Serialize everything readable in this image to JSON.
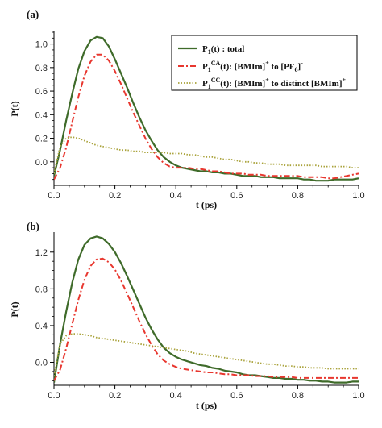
{
  "chart_data": [
    {
      "type": "line",
      "panel_label": "(a)",
      "xlabel": "t (ps)",
      "ylabel": "P(t)",
      "xlim": [
        0,
        1.0
      ],
      "ylim": [
        -0.2,
        1.1
      ],
      "xticks": [
        0.0,
        0.2,
        0.4,
        0.6,
        0.8,
        1.0
      ],
      "xtick_labels": [
        "0.0",
        "0.2",
        "0.4",
        "0.6",
        "0.8",
        "1.0"
      ],
      "yticks": [
        0.0,
        0.2,
        0.4,
        0.6,
        0.8,
        1.0
      ],
      "ytick_labels": [
        "0.0",
        "0.2",
        "0.4",
        "0.6",
        "0.8",
        "1.0"
      ],
      "grid": false,
      "legend": {
        "placement": "top-right",
        "entries": [
          {
            "series": 0,
            "parts": [
              {
                "t": "P",
                "s": "normal"
              },
              {
                "t": "1",
                "s": "sub"
              },
              {
                "t": "(t)    : total",
                "s": "normal"
              }
            ]
          },
          {
            "series": 1,
            "parts": [
              {
                "t": "P",
                "s": "normal"
              },
              {
                "t": "1",
                "s": "sub"
              },
              {
                "t": "CA",
                "s": "sup"
              },
              {
                "t": "(t): [BMIm]",
                "s": "normal"
              },
              {
                "t": "+",
                "s": "sup"
              },
              {
                "t": " to [PF",
                "s": "normal"
              },
              {
                "t": "6",
                "s": "sub"
              },
              {
                "t": "]",
                "s": "normal"
              },
              {
                "t": "-",
                "s": "sup"
              }
            ]
          },
          {
            "series": 2,
            "parts": [
              {
                "t": "P",
                "s": "normal"
              },
              {
                "t": "1",
                "s": "sub"
              },
              {
                "t": "CC",
                "s": "sup"
              },
              {
                "t": "(t): [BMIm]",
                "s": "normal"
              },
              {
                "t": "+",
                "s": "sup"
              },
              {
                "t": " to distinct [BMIm]",
                "s": "normal"
              },
              {
                "t": "+",
                "s": "sup"
              }
            ]
          }
        ]
      },
      "series": [
        {
          "style": "solid",
          "color": "#3f6b2a",
          "x": [
            0.0,
            0.02,
            0.04,
            0.06,
            0.08,
            0.1,
            0.12,
            0.14,
            0.16,
            0.18,
            0.2,
            0.22,
            0.24,
            0.26,
            0.28,
            0.3,
            0.32,
            0.34,
            0.36,
            0.38,
            0.4,
            0.42,
            0.44,
            0.46,
            0.48,
            0.5,
            0.52,
            0.54,
            0.56,
            0.58,
            0.6,
            0.62,
            0.64,
            0.66,
            0.68,
            0.7,
            0.72,
            0.74,
            0.76,
            0.78,
            0.8,
            0.82,
            0.84,
            0.86,
            0.88,
            0.9,
            0.92,
            0.94,
            0.96,
            0.98,
            1.0
          ],
          "y": [
            -0.12,
            0.1,
            0.35,
            0.58,
            0.79,
            0.94,
            1.03,
            1.06,
            1.05,
            0.98,
            0.87,
            0.75,
            0.63,
            0.5,
            0.38,
            0.27,
            0.18,
            0.1,
            0.04,
            0.0,
            -0.03,
            -0.05,
            -0.06,
            -0.07,
            -0.08,
            -0.08,
            -0.09,
            -0.09,
            -0.1,
            -0.1,
            -0.11,
            -0.12,
            -0.12,
            -0.12,
            -0.13,
            -0.13,
            -0.13,
            -0.14,
            -0.14,
            -0.14,
            -0.14,
            -0.15,
            -0.15,
            -0.16,
            -0.16,
            -0.16,
            -0.15,
            -0.15,
            -0.15,
            -0.15,
            -0.14
          ]
        },
        {
          "style": "dash-dot",
          "color": "#e8372f",
          "x": [
            0.0,
            0.02,
            0.04,
            0.06,
            0.08,
            0.1,
            0.12,
            0.14,
            0.16,
            0.18,
            0.2,
            0.22,
            0.24,
            0.26,
            0.28,
            0.3,
            0.32,
            0.34,
            0.36,
            0.38,
            0.4,
            0.42,
            0.44,
            0.46,
            0.48,
            0.5,
            0.52,
            0.54,
            0.56,
            0.58,
            0.6,
            0.62,
            0.64,
            0.66,
            0.68,
            0.7,
            0.72,
            0.74,
            0.76,
            0.78,
            0.8,
            0.82,
            0.84,
            0.86,
            0.88,
            0.9,
            0.92,
            0.94,
            0.96,
            0.98,
            1.0
          ],
          "y": [
            -0.15,
            -0.05,
            0.12,
            0.34,
            0.55,
            0.73,
            0.85,
            0.91,
            0.91,
            0.86,
            0.77,
            0.66,
            0.54,
            0.42,
            0.31,
            0.2,
            0.11,
            0.04,
            -0.01,
            -0.04,
            -0.05,
            -0.05,
            -0.05,
            -0.06,
            -0.06,
            -0.07,
            -0.08,
            -0.08,
            -0.09,
            -0.1,
            -0.1,
            -0.1,
            -0.11,
            -0.11,
            -0.11,
            -0.12,
            -0.12,
            -0.12,
            -0.12,
            -0.12,
            -0.12,
            -0.13,
            -0.13,
            -0.13,
            -0.13,
            -0.14,
            -0.14,
            -0.13,
            -0.12,
            -0.11,
            -0.1
          ]
        },
        {
          "style": "dotted",
          "color": "#a9a23a",
          "x": [
            0.0,
            0.02,
            0.04,
            0.06,
            0.08,
            0.1,
            0.12,
            0.14,
            0.16,
            0.18,
            0.2,
            0.22,
            0.24,
            0.26,
            0.28,
            0.3,
            0.32,
            0.34,
            0.36,
            0.38,
            0.4,
            0.42,
            0.44,
            0.46,
            0.48,
            0.5,
            0.52,
            0.54,
            0.56,
            0.58,
            0.6,
            0.62,
            0.64,
            0.66,
            0.68,
            0.7,
            0.72,
            0.74,
            0.76,
            0.78,
            0.8,
            0.82,
            0.84,
            0.86,
            0.88,
            0.9,
            0.92,
            0.94,
            0.96,
            0.98,
            1.0
          ],
          "y": [
            -0.1,
            0.13,
            0.2,
            0.21,
            0.2,
            0.18,
            0.16,
            0.14,
            0.13,
            0.12,
            0.11,
            0.1,
            0.1,
            0.09,
            0.09,
            0.08,
            0.08,
            0.08,
            0.08,
            0.07,
            0.07,
            0.07,
            0.06,
            0.06,
            0.05,
            0.04,
            0.04,
            0.03,
            0.02,
            0.02,
            0.01,
            0.0,
            0.0,
            -0.01,
            -0.01,
            -0.02,
            -0.02,
            -0.02,
            -0.03,
            -0.03,
            -0.03,
            -0.03,
            -0.03,
            -0.03,
            -0.04,
            -0.04,
            -0.04,
            -0.04,
            -0.04,
            -0.05,
            -0.05
          ]
        }
      ]
    },
    {
      "type": "line",
      "panel_label": "(b)",
      "xlabel": "t (ps)",
      "ylabel": "P(t)",
      "xlim": [
        0,
        1.0
      ],
      "ylim": [
        -0.25,
        1.4
      ],
      "xticks": [
        0.0,
        0.2,
        0.4,
        0.6,
        0.8,
        1.0
      ],
      "xtick_labels": [
        "0.0",
        "0.2",
        "0.4",
        "0.6",
        "0.8",
        "1.0"
      ],
      "yticks": [
        0.0,
        0.4,
        0.8,
        1.2
      ],
      "ytick_labels": [
        "0.0",
        "0.4",
        "0.8",
        "1.2"
      ],
      "grid": false,
      "legend": null,
      "series": [
        {
          "style": "solid",
          "color": "#3f6b2a",
          "x": [
            0.0,
            0.02,
            0.04,
            0.06,
            0.08,
            0.1,
            0.12,
            0.14,
            0.16,
            0.18,
            0.2,
            0.22,
            0.24,
            0.26,
            0.28,
            0.3,
            0.32,
            0.34,
            0.36,
            0.38,
            0.4,
            0.42,
            0.44,
            0.46,
            0.48,
            0.5,
            0.52,
            0.54,
            0.56,
            0.58,
            0.6,
            0.62,
            0.64,
            0.66,
            0.68,
            0.7,
            0.72,
            0.74,
            0.76,
            0.78,
            0.8,
            0.82,
            0.84,
            0.86,
            0.88,
            0.9,
            0.92,
            0.94,
            0.96,
            0.98,
            1.0
          ],
          "y": [
            -0.22,
            0.2,
            0.55,
            0.87,
            1.12,
            1.28,
            1.35,
            1.37,
            1.35,
            1.29,
            1.2,
            1.08,
            0.94,
            0.79,
            0.64,
            0.49,
            0.36,
            0.25,
            0.16,
            0.1,
            0.06,
            0.03,
            0.01,
            -0.01,
            -0.03,
            -0.04,
            -0.06,
            -0.07,
            -0.09,
            -0.1,
            -0.11,
            -0.13,
            -0.14,
            -0.14,
            -0.15,
            -0.16,
            -0.17,
            -0.17,
            -0.18,
            -0.18,
            -0.19,
            -0.19,
            -0.2,
            -0.2,
            -0.21,
            -0.21,
            -0.22,
            -0.22,
            -0.22,
            -0.21,
            -0.21
          ]
        },
        {
          "style": "dash-dot",
          "color": "#e8372f",
          "x": [
            0.0,
            0.02,
            0.04,
            0.06,
            0.08,
            0.1,
            0.12,
            0.14,
            0.16,
            0.18,
            0.2,
            0.22,
            0.24,
            0.26,
            0.28,
            0.3,
            0.32,
            0.34,
            0.36,
            0.38,
            0.4,
            0.42,
            0.44,
            0.46,
            0.48,
            0.5,
            0.52,
            0.54,
            0.56,
            0.58,
            0.6,
            0.62,
            0.64,
            0.66,
            0.68,
            0.7,
            0.72,
            0.74,
            0.76,
            0.78,
            0.8,
            0.82,
            0.84,
            0.86,
            0.88,
            0.9,
            0.92,
            0.94,
            0.96,
            0.98,
            1.0
          ],
          "y": [
            -0.2,
            -0.08,
            0.15,
            0.42,
            0.68,
            0.9,
            1.05,
            1.12,
            1.13,
            1.09,
            1.01,
            0.89,
            0.75,
            0.6,
            0.45,
            0.31,
            0.19,
            0.09,
            0.02,
            -0.02,
            -0.05,
            -0.07,
            -0.08,
            -0.09,
            -0.1,
            -0.11,
            -0.11,
            -0.12,
            -0.13,
            -0.13,
            -0.14,
            -0.14,
            -0.14,
            -0.15,
            -0.15,
            -0.15,
            -0.16,
            -0.16,
            -0.16,
            -0.16,
            -0.17,
            -0.17,
            -0.17,
            -0.17,
            -0.17,
            -0.17,
            -0.17,
            -0.17,
            -0.17,
            -0.17,
            -0.17
          ]
        },
        {
          "style": "dotted",
          "color": "#a9a23a",
          "x": [
            0.0,
            0.02,
            0.04,
            0.06,
            0.08,
            0.1,
            0.12,
            0.14,
            0.16,
            0.18,
            0.2,
            0.22,
            0.24,
            0.26,
            0.28,
            0.3,
            0.32,
            0.34,
            0.36,
            0.38,
            0.4,
            0.42,
            0.44,
            0.46,
            0.48,
            0.5,
            0.52,
            0.54,
            0.56,
            0.58,
            0.6,
            0.62,
            0.64,
            0.66,
            0.68,
            0.7,
            0.72,
            0.74,
            0.76,
            0.78,
            0.8,
            0.82,
            0.84,
            0.86,
            0.88,
            0.9,
            0.92,
            0.94,
            0.96,
            0.98,
            1.0
          ],
          "y": [
            -0.15,
            0.2,
            0.29,
            0.31,
            0.31,
            0.3,
            0.29,
            0.27,
            0.26,
            0.25,
            0.24,
            0.23,
            0.22,
            0.21,
            0.2,
            0.19,
            0.18,
            0.17,
            0.16,
            0.15,
            0.14,
            0.13,
            0.12,
            0.1,
            0.09,
            0.08,
            0.07,
            0.06,
            0.05,
            0.04,
            0.03,
            0.02,
            0.01,
            0.0,
            -0.01,
            -0.02,
            -0.02,
            -0.03,
            -0.04,
            -0.04,
            -0.05,
            -0.05,
            -0.06,
            -0.06,
            -0.06,
            -0.07,
            -0.07,
            -0.07,
            -0.07,
            -0.07,
            -0.07
          ]
        }
      ]
    }
  ]
}
